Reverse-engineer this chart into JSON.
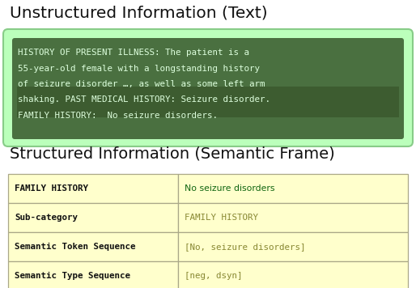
{
  "title_top": "Unstructured Information (Text)",
  "title_bottom": "Structured Information (Semantic Frame)",
  "light_green_bg": "#bbffbb",
  "dark_green_bg": "#4a7040",
  "dark_green_text": "#ddffdd",
  "highlight_bg": "#3d5c30",
  "text_lines": [
    "HISTORY OF PRESENT ILLNESS: The patient is a",
    "55-year-old female with a longstanding history",
    "of seizure disorder …, as well as some left arm",
    "shaking. PAST MEDICAL HISTORY: Seizure disorder.",
    "FAMILY HISTORY:  No seizure disorders."
  ],
  "table_bg": "#ffffcc",
  "table_border": "#aaa888",
  "table_rows": [
    [
      "FAMILY HISTORY",
      "No seizure disorders"
    ],
    [
      "Sub-category",
      "FAMILY HISTORY"
    ],
    [
      "Semantic Token Sequence",
      "[No, seizure disorders]"
    ],
    [
      "Semantic Type Sequence",
      "[neg, dsyn]"
    ]
  ],
  "figure_bg": "#ffffff",
  "title_color": "#111111",
  "col1_monospace_color": "#111111",
  "col2_mono_color": "#888833",
  "col2_bold_color": "#116611"
}
